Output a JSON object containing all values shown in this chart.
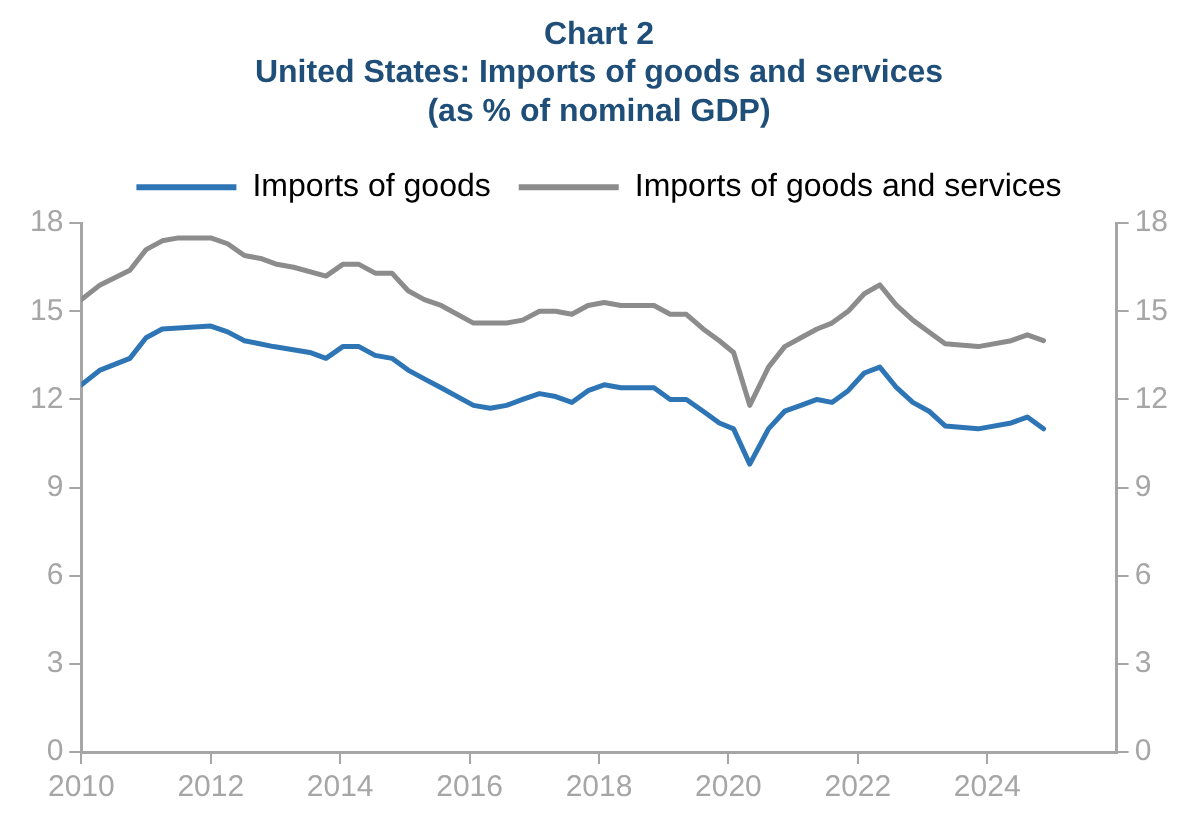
{
  "chart_data": {
    "type": "line",
    "title": "Chart 2\nUnited States: Imports of goods and services\n(as % of nominal GDP)",
    "xlim": [
      2010,
      2026
    ],
    "xticks": [
      2010,
      2012,
      2014,
      2016,
      2018,
      2020,
      2022,
      2024
    ],
    "ylim": [
      0,
      18
    ],
    "yticks": [
      0,
      3,
      6,
      9,
      12,
      15,
      18
    ],
    "y2lim": [
      0,
      18
    ],
    "y2ticks": [
      0,
      3,
      6,
      9,
      12,
      15,
      18
    ],
    "legend": "top",
    "grid": false,
    "marker": "none",
    "line_style": "solid",
    "series": [
      {
        "name": "Imports of goods",
        "color": "#2e75b6",
        "x": [
          2010.0,
          2010.29,
          2010.75,
          2011.0,
          2011.25,
          2012.0,
          2012.26,
          2012.52,
          2012.97,
          2013.53,
          2013.78,
          2014.04,
          2014.29,
          2014.54,
          2014.8,
          2015.05,
          2015.3,
          2015.56,
          2016.06,
          2016.32,
          2016.57,
          2016.82,
          2017.08,
          2017.33,
          2017.58,
          2017.83,
          2018.08,
          2018.34,
          2018.6,
          2018.85,
          2019.1,
          2019.35,
          2019.61,
          2019.86,
          2020.08,
          2020.33,
          2020.62,
          2020.87,
          2021.12,
          2021.37,
          2021.6,
          2021.85,
          2022.1,
          2022.34,
          2022.6,
          2022.85,
          2023.1,
          2023.35,
          2023.86,
          2024.37,
          2024.62,
          2024.87
        ],
        "values": [
          12.5,
          13.0,
          13.4,
          14.1,
          14.4,
          14.5,
          14.3,
          14.0,
          13.8,
          13.6,
          13.4,
          13.8,
          13.8,
          13.5,
          13.4,
          13.0,
          12.7,
          12.4,
          11.8,
          11.7,
          11.8,
          12.0,
          12.2,
          12.1,
          11.9,
          12.3,
          12.5,
          12.4,
          12.4,
          12.4,
          12.0,
          12.0,
          11.6,
          11.2,
          11.0,
          9.8,
          11.0,
          11.6,
          11.8,
          12.0,
          11.9,
          12.3,
          12.9,
          13.1,
          12.4,
          11.9,
          11.6,
          11.1,
          11.0,
          11.2,
          11.4,
          11.0
        ]
      },
      {
        "name": "Imports of goods and services",
        "color": "#8c8c8c",
        "x": [
          2010.0,
          2010.29,
          2010.75,
          2011.0,
          2011.25,
          2011.5,
          2012.0,
          2012.26,
          2012.52,
          2012.77,
          2013.02,
          2013.28,
          2013.78,
          2014.04,
          2014.29,
          2014.54,
          2014.8,
          2015.05,
          2015.3,
          2015.56,
          2016.06,
          2016.32,
          2016.57,
          2016.82,
          2017.08,
          2017.33,
          2017.58,
          2017.83,
          2018.08,
          2018.34,
          2018.6,
          2018.85,
          2019.1,
          2019.35,
          2019.61,
          2019.86,
          2020.08,
          2020.33,
          2020.62,
          2020.87,
          2021.12,
          2021.37,
          2021.6,
          2021.85,
          2022.1,
          2022.34,
          2022.6,
          2022.85,
          2023.1,
          2023.35,
          2023.86,
          2024.37,
          2024.62,
          2024.87
        ],
        "values": [
          15.4,
          15.9,
          16.4,
          17.1,
          17.4,
          17.5,
          17.5,
          17.3,
          16.9,
          16.8,
          16.6,
          16.5,
          16.2,
          16.6,
          16.6,
          16.3,
          16.3,
          15.7,
          15.4,
          15.2,
          14.6,
          14.6,
          14.6,
          14.7,
          15.0,
          15.0,
          14.9,
          15.2,
          15.3,
          15.2,
          15.2,
          15.2,
          14.9,
          14.9,
          14.4,
          14.0,
          13.6,
          11.8,
          13.1,
          13.8,
          14.1,
          14.4,
          14.6,
          15.0,
          15.6,
          15.9,
          15.2,
          14.7,
          14.3,
          13.9,
          13.8,
          14.0,
          14.2,
          14.0
        ]
      }
    ]
  }
}
